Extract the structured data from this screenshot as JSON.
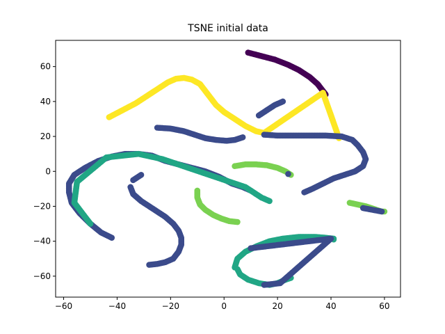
{
  "chart_data": {
    "type": "scatter",
    "title": "TSNE initial data",
    "xlabel": "",
    "ylabel": "",
    "xlim": [
      -63,
      66
    ],
    "ylim": [
      -72,
      75
    ],
    "xticks": [
      -60,
      -40,
      -20,
      0,
      20,
      40,
      60
    ],
    "yticks": [
      -60,
      -40,
      -20,
      0,
      20,
      40,
      60
    ],
    "grid": false,
    "colors": {
      "purple": "#440154",
      "blue": "#3b4b8b",
      "teal": "#21a685",
      "green": "#7ad151",
      "yellow": "#fde725"
    },
    "series": [
      {
        "color": "purple",
        "points": [
          [
            9,
            68
          ],
          [
            14,
            66
          ],
          [
            19,
            64
          ],
          [
            24,
            61
          ],
          [
            28,
            58
          ],
          [
            32,
            54
          ],
          [
            35,
            50
          ],
          [
            37,
            46
          ],
          [
            38,
            44
          ]
        ]
      },
      {
        "color": "yellow",
        "points": [
          [
            -43,
            31
          ],
          [
            -38,
            35
          ],
          [
            -33,
            39
          ],
          [
            -28,
            44
          ],
          [
            -24,
            48
          ],
          [
            -21,
            51
          ],
          [
            -18,
            53
          ],
          [
            -15,
            53.5
          ],
          [
            -12,
            52.5
          ],
          [
            -9,
            50
          ],
          [
            -7,
            46
          ],
          [
            -5,
            42
          ],
          [
            -3,
            38
          ],
          [
            0,
            34
          ],
          [
            4,
            30
          ],
          [
            8,
            26
          ],
          [
            12,
            23
          ],
          [
            15,
            22
          ],
          [
            37,
            45
          ],
          [
            43,
            19
          ]
        ]
      },
      {
        "color": "blue",
        "points": [
          [
            -25,
            25
          ],
          [
            -20,
            24.5
          ],
          [
            -15,
            23
          ],
          [
            -11,
            21
          ],
          [
            -7,
            19
          ],
          [
            -3,
            18
          ],
          [
            1,
            17.5
          ],
          [
            4,
            18
          ],
          [
            7,
            19.5
          ]
        ]
      },
      {
        "color": "blue",
        "points": [
          [
            13,
            32
          ],
          [
            16,
            35
          ],
          [
            19,
            38
          ],
          [
            22,
            40
          ]
        ]
      },
      {
        "color": "blue",
        "points": [
          [
            15,
            21
          ],
          [
            20,
            20.5
          ],
          [
            26,
            20.5
          ],
          [
            32,
            20.5
          ],
          [
            38,
            20.5
          ],
          [
            44,
            20
          ],
          [
            48,
            18
          ],
          [
            50,
            15
          ],
          [
            52,
            11
          ],
          [
            53,
            7
          ],
          [
            52,
            3
          ],
          [
            49,
            0
          ],
          [
            45,
            -2
          ],
          [
            41,
            -4
          ],
          [
            37,
            -7
          ],
          [
            33,
            -10
          ],
          [
            30,
            -12
          ]
        ]
      },
      {
        "color": "blue",
        "points": [
          [
            -42,
            -38
          ],
          [
            -46,
            -35
          ],
          [
            -50,
            -30
          ],
          [
            -54,
            -24
          ],
          [
            -57,
            -18
          ],
          [
            -58,
            -12
          ],
          [
            -58,
            -7
          ],
          [
            -56,
            -2
          ],
          [
            -52,
            2
          ],
          [
            -47,
            6
          ],
          [
            -42,
            8.5
          ],
          [
            -37,
            10
          ],
          [
            -32,
            10
          ],
          [
            -27,
            9
          ],
          [
            -22,
            6
          ],
          [
            -17,
            4
          ],
          [
            -12,
            2
          ],
          [
            -7,
            0
          ],
          [
            -2,
            -3
          ],
          [
            3,
            -7
          ],
          [
            7,
            -9
          ],
          [
            10,
            -11
          ]
        ]
      },
      {
        "color": "teal",
        "points": [
          [
            -50,
            -30
          ],
          [
            -56,
            -18
          ],
          [
            -55,
            -6
          ],
          [
            -44,
            8
          ],
          [
            -32,
            10
          ],
          [
            -23,
            7
          ],
          [
            8,
            -9
          ],
          [
            11,
            -12
          ],
          [
            14,
            -15
          ],
          [
            17,
            -17
          ]
        ]
      },
      {
        "color": "blue",
        "points": [
          [
            -35,
            -9
          ],
          [
            -34,
            -13
          ],
          [
            -31,
            -17
          ],
          [
            -28,
            -20
          ],
          [
            -25,
            -23
          ],
          [
            -22,
            -26
          ],
          [
            -19,
            -30
          ],
          [
            -17,
            -34
          ],
          [
            -16,
            -38
          ],
          [
            -16,
            -42
          ],
          [
            -17,
            -46
          ],
          [
            -19,
            -50
          ],
          [
            -22,
            -52
          ],
          [
            -25,
            -53
          ],
          [
            -28,
            -53.5
          ]
        ]
      },
      {
        "color": "blue",
        "points": [
          [
            -34,
            -5
          ],
          [
            -31,
            -2
          ]
        ]
      },
      {
        "color": "green",
        "points": [
          [
            -10,
            -11
          ],
          [
            -10,
            -15
          ],
          [
            -9,
            -19
          ],
          [
            -7,
            -22
          ],
          [
            -4,
            -25
          ],
          [
            -1,
            -27
          ],
          [
            2,
            -28.5
          ],
          [
            5,
            -29
          ]
        ]
      },
      {
        "color": "green",
        "points": [
          [
            4,
            3
          ],
          [
            8,
            4
          ],
          [
            12,
            4
          ],
          [
            16,
            3.5
          ],
          [
            20,
            2
          ],
          [
            23,
            0
          ],
          [
            25,
            -2
          ]
        ]
      },
      {
        "color": "blue",
        "points": [
          [
            24,
            -1.5
          ]
        ]
      },
      {
        "color": "green",
        "points": [
          [
            47,
            -18
          ],
          [
            50,
            -19
          ],
          [
            53,
            -20
          ],
          [
            56,
            -21.5
          ],
          [
            59,
            -23
          ],
          [
            60,
            -23
          ]
        ]
      },
      {
        "color": "blue",
        "points": [
          [
            52,
            -21
          ],
          [
            59,
            -23
          ]
        ]
      },
      {
        "color": "teal",
        "points": [
          [
            4,
            -55
          ],
          [
            5,
            -50
          ],
          [
            8,
            -46
          ],
          [
            12,
            -43
          ],
          [
            17,
            -40
          ],
          [
            22,
            -38.5
          ],
          [
            28,
            -37.5
          ],
          [
            34,
            -37.5
          ],
          [
            38,
            -38
          ],
          [
            41,
            -38.5
          ],
          [
            41,
            -39
          ]
        ]
      },
      {
        "color": "teal",
        "points": [
          [
            5,
            -56
          ],
          [
            6,
            -59
          ],
          [
            9,
            -62
          ],
          [
            13,
            -64
          ],
          [
            17,
            -65
          ],
          [
            20,
            -64
          ],
          [
            23,
            -62
          ],
          [
            25,
            -61
          ]
        ]
      },
      {
        "color": "blue",
        "points": [
          [
            15,
            -65
          ],
          [
            21,
            -64
          ],
          [
            40,
            -38.5
          ],
          [
            10,
            -44
          ]
        ]
      }
    ]
  }
}
